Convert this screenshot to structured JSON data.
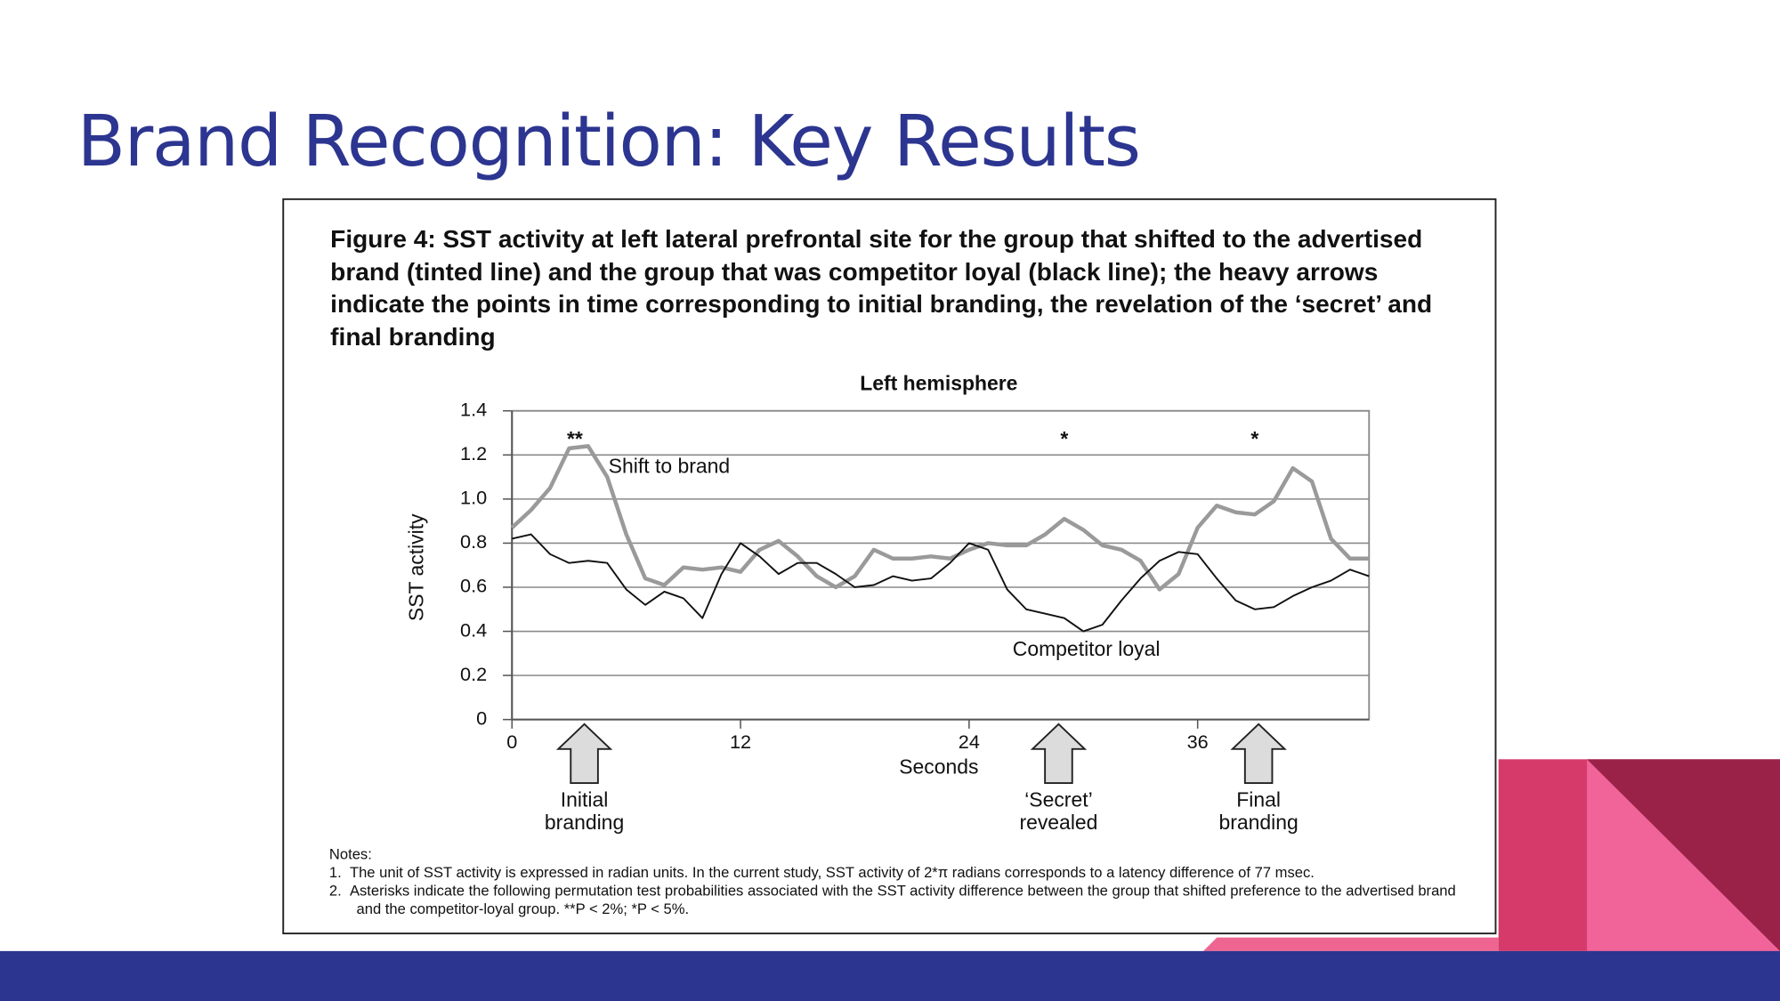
{
  "slide": {
    "title": "Brand Recognition: Key Results"
  },
  "chart_data": {
    "type": "line",
    "title": "Figure 4: SST activity at left lateral prefrontal site for the group that shifted to the advertised brand (tinted line) and the group that was competitor loyal (black line); the heavy arrows indicate the points in time corresponding to initial branding, the revelation of the ‘secret’ and final branding",
    "subtitle": "Left hemisphere",
    "xlabel": "Seconds",
    "ylabel": "SST activity",
    "x": [
      0,
      1,
      2,
      3,
      4,
      5,
      6,
      7,
      8,
      9,
      10,
      11,
      12,
      13,
      14,
      15,
      16,
      17,
      18,
      19,
      20,
      21,
      22,
      23,
      24,
      25,
      26,
      27,
      28,
      29,
      30,
      31,
      32,
      33,
      34,
      35,
      36,
      37,
      38,
      39,
      40,
      41,
      42,
      43,
      44,
      45
    ],
    "series": [
      {
        "name": "Shift to brand",
        "color": "#9a9a9a",
        "values": [
          0.87,
          0.95,
          1.05,
          1.23,
          1.24,
          1.1,
          0.84,
          0.64,
          0.61,
          0.69,
          0.68,
          0.69,
          0.67,
          0.77,
          0.81,
          0.74,
          0.65,
          0.6,
          0.65,
          0.77,
          0.73,
          0.73,
          0.74,
          0.73,
          0.77,
          0.8,
          0.79,
          0.79,
          0.84,
          0.91,
          0.86,
          0.79,
          0.77,
          0.72,
          0.59,
          0.66,
          0.87,
          0.97,
          0.94,
          0.93,
          0.99,
          1.14,
          1.08,
          0.82,
          0.73,
          0.73
        ]
      },
      {
        "name": "Competitor loyal",
        "color": "#111111",
        "values": [
          0.82,
          0.84,
          0.75,
          0.71,
          0.72,
          0.71,
          0.59,
          0.52,
          0.58,
          0.55,
          0.46,
          0.66,
          0.8,
          0.74,
          0.66,
          0.71,
          0.71,
          0.66,
          0.6,
          0.61,
          0.65,
          0.63,
          0.64,
          0.71,
          0.8,
          0.77,
          0.59,
          0.5,
          0.48,
          0.46,
          0.4,
          0.43,
          0.54,
          0.64,
          0.72,
          0.76,
          0.75,
          0.64,
          0.54,
          0.5,
          0.51,
          0.56,
          0.6,
          0.63,
          0.68,
          0.65
        ]
      }
    ],
    "xlim": [
      0,
      45
    ],
    "xticks": [
      0,
      12,
      24,
      36
    ],
    "ylim": [
      0,
      1.4
    ],
    "yticks": [
      0,
      0.2,
      0.4,
      0.6,
      0.8,
      {
        "value": 1,
        "label": "1.0"
      },
      1.2,
      1.4
    ],
    "grid": true,
    "significance": [
      {
        "text": "**",
        "x": 3.3
      },
      {
        "text": "*",
        "x": 29
      },
      {
        "text": "*",
        "x": 39
      }
    ],
    "events": [
      {
        "text": "Initial branding",
        "x": 3.8
      },
      {
        "text": "‘Secret’ revealed",
        "x": 28.7
      },
      {
        "text": "Final branding",
        "x": 39.2
      }
    ],
    "notes": {
      "heading": "Notes:",
      "items": [
        "1.  The unit of SST activity is expressed in radian units. In the current study, SST activity of 2*π radians corresponds to a latency difference of 77 msec.",
        "2.  Asterisks indicate the following permutation test probabilities associated with the SST activity difference between the group that shifted preference to the advertised brand and the competitor-loyal group. **P < 2%; *P < 5%."
      ]
    }
  }
}
